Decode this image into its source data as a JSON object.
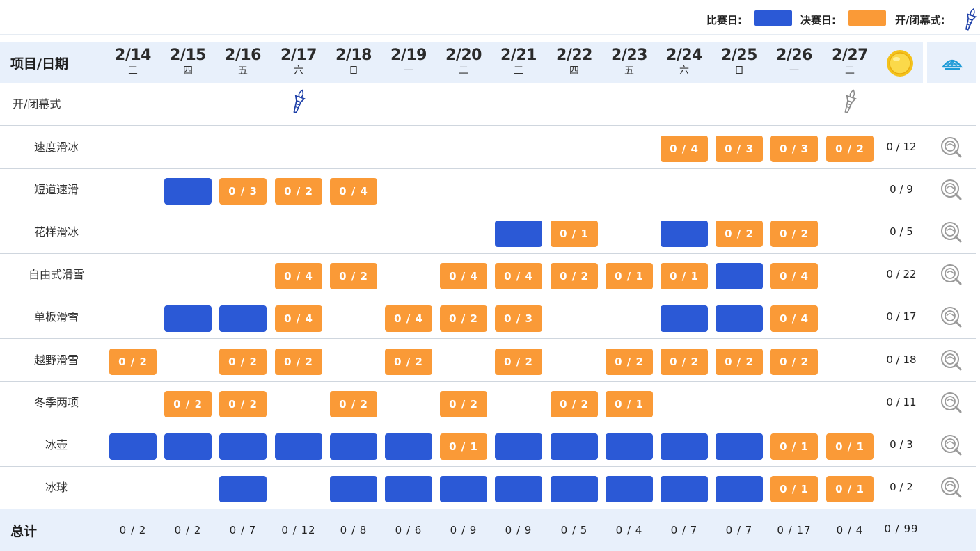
{
  "legend": {
    "competition_label": "比赛日:",
    "final_label": "决赛日:",
    "ceremony_label": "开/闭幕式:",
    "competition_color": "#2b59d6",
    "final_color": "#fa9a37",
    "ceremony_icon": "torch-icon"
  },
  "header": {
    "title": "项目/日期",
    "medal_icon": "gold-medal-icon",
    "venue_icon": "stadium-icon",
    "dates": [
      {
        "date": "2/14",
        "weekday": "三"
      },
      {
        "date": "2/15",
        "weekday": "四"
      },
      {
        "date": "2/16",
        "weekday": "五"
      },
      {
        "date": "2/17",
        "weekday": "六"
      },
      {
        "date": "2/18",
        "weekday": "日"
      },
      {
        "date": "2/19",
        "weekday": "一"
      },
      {
        "date": "2/20",
        "weekday": "二"
      },
      {
        "date": "2/21",
        "weekday": "三"
      },
      {
        "date": "2/22",
        "weekday": "四"
      },
      {
        "date": "2/23",
        "weekday": "五"
      },
      {
        "date": "2/24",
        "weekday": "六"
      },
      {
        "date": "2/25",
        "weekday": "日"
      },
      {
        "date": "2/26",
        "weekday": "一"
      },
      {
        "date": "2/27",
        "weekday": "二"
      }
    ]
  },
  "ceremony_row": {
    "label": "开/闭幕式",
    "torch_days": [
      3,
      13
    ]
  },
  "events": [
    {
      "name": "速度滑冰",
      "total": "0 / 12",
      "cells": [
        null,
        null,
        null,
        null,
        null,
        null,
        null,
        null,
        null,
        null,
        {
          "t": "final",
          "text": "0 / 4"
        },
        {
          "t": "final",
          "text": "0 / 3"
        },
        {
          "t": "final",
          "text": "0 / 3"
        },
        {
          "t": "final",
          "text": "0 / 2"
        }
      ]
    },
    {
      "name": "短道速滑",
      "total": "0 / 9",
      "cells": [
        null,
        {
          "t": "comp"
        },
        {
          "t": "final",
          "text": "0 / 3"
        },
        {
          "t": "final",
          "text": "0 / 2"
        },
        {
          "t": "final",
          "text": "0 / 4"
        },
        null,
        null,
        null,
        null,
        null,
        null,
        null,
        null,
        null
      ]
    },
    {
      "name": "花样滑冰",
      "total": "0 / 5",
      "cells": [
        null,
        null,
        null,
        null,
        null,
        null,
        null,
        {
          "t": "comp"
        },
        {
          "t": "final",
          "text": "0 / 1"
        },
        null,
        {
          "t": "comp"
        },
        {
          "t": "final",
          "text": "0 / 2"
        },
        {
          "t": "final",
          "text": "0 / 2"
        },
        null
      ]
    },
    {
      "name": "自由式滑雪",
      "total": "0 / 22",
      "cells": [
        null,
        null,
        null,
        {
          "t": "final",
          "text": "0 / 4"
        },
        {
          "t": "final",
          "text": "0 / 2"
        },
        null,
        {
          "t": "final",
          "text": "0 / 4"
        },
        {
          "t": "final",
          "text": "0 / 4"
        },
        {
          "t": "final",
          "text": "0 / 2"
        },
        {
          "t": "final",
          "text": "0 / 1"
        },
        {
          "t": "final",
          "text": "0 / 1"
        },
        {
          "t": "comp"
        },
        {
          "t": "final",
          "text": "0 / 4"
        },
        null
      ]
    },
    {
      "name": "单板滑雪",
      "total": "0 / 17",
      "cells": [
        null,
        {
          "t": "comp"
        },
        {
          "t": "comp"
        },
        {
          "t": "final",
          "text": "0 / 4"
        },
        null,
        {
          "t": "final",
          "text": "0 / 4"
        },
        {
          "t": "final",
          "text": "0 / 2"
        },
        {
          "t": "final",
          "text": "0 / 3"
        },
        null,
        null,
        {
          "t": "comp"
        },
        {
          "t": "comp"
        },
        {
          "t": "final",
          "text": "0 / 4"
        },
        null
      ]
    },
    {
      "name": "越野滑雪",
      "total": "0 / 18",
      "cells": [
        {
          "t": "final",
          "text": "0 / 2"
        },
        null,
        {
          "t": "final",
          "text": "0 / 2"
        },
        {
          "t": "final",
          "text": "0 / 2"
        },
        null,
        {
          "t": "final",
          "text": "0 / 2"
        },
        null,
        {
          "t": "final",
          "text": "0 / 2"
        },
        null,
        {
          "t": "final",
          "text": "0 / 2"
        },
        {
          "t": "final",
          "text": "0 / 2"
        },
        {
          "t": "final",
          "text": "0 / 2"
        },
        {
          "t": "final",
          "text": "0 / 2"
        },
        null
      ]
    },
    {
      "name": "冬季两项",
      "total": "0 / 11",
      "cells": [
        null,
        {
          "t": "final",
          "text": "0 / 2"
        },
        {
          "t": "final",
          "text": "0 / 2"
        },
        null,
        {
          "t": "final",
          "text": "0 / 2"
        },
        null,
        {
          "t": "final",
          "text": "0 / 2"
        },
        null,
        {
          "t": "final",
          "text": "0 / 2"
        },
        {
          "t": "final",
          "text": "0 / 1"
        },
        null,
        null,
        null,
        null
      ]
    },
    {
      "name": "冰壶",
      "total": "0 / 3",
      "cells": [
        {
          "t": "comp"
        },
        {
          "t": "comp"
        },
        {
          "t": "comp"
        },
        {
          "t": "comp"
        },
        {
          "t": "comp"
        },
        {
          "t": "comp"
        },
        {
          "t": "final",
          "text": "0 / 1"
        },
        {
          "t": "comp"
        },
        {
          "t": "comp"
        },
        {
          "t": "comp"
        },
        {
          "t": "comp"
        },
        {
          "t": "comp"
        },
        {
          "t": "final",
          "text": "0 / 1"
        },
        {
          "t": "final",
          "text": "0 / 1"
        }
      ]
    },
    {
      "name": "冰球",
      "total": "0 / 2",
      "cells": [
        null,
        null,
        {
          "t": "comp"
        },
        null,
        {
          "t": "comp"
        },
        {
          "t": "comp"
        },
        {
          "t": "comp"
        },
        {
          "t": "comp"
        },
        {
          "t": "comp"
        },
        {
          "t": "comp"
        },
        {
          "t": "comp"
        },
        {
          "t": "comp"
        },
        {
          "t": "final",
          "text": "0 / 1"
        },
        {
          "t": "final",
          "text": "0 / 1"
        }
      ]
    }
  ],
  "footer": {
    "label": "总计",
    "totals": [
      "0 / 2",
      "0 / 2",
      "0 / 7",
      "0 / 12",
      "0 / 8",
      "0 / 6",
      "0 / 9",
      "0 / 9",
      "0 / 5",
      "0 / 4",
      "0 / 7",
      "0 / 7",
      "0 / 17",
      "0 / 4"
    ],
    "grand_total": "0 / 99"
  }
}
